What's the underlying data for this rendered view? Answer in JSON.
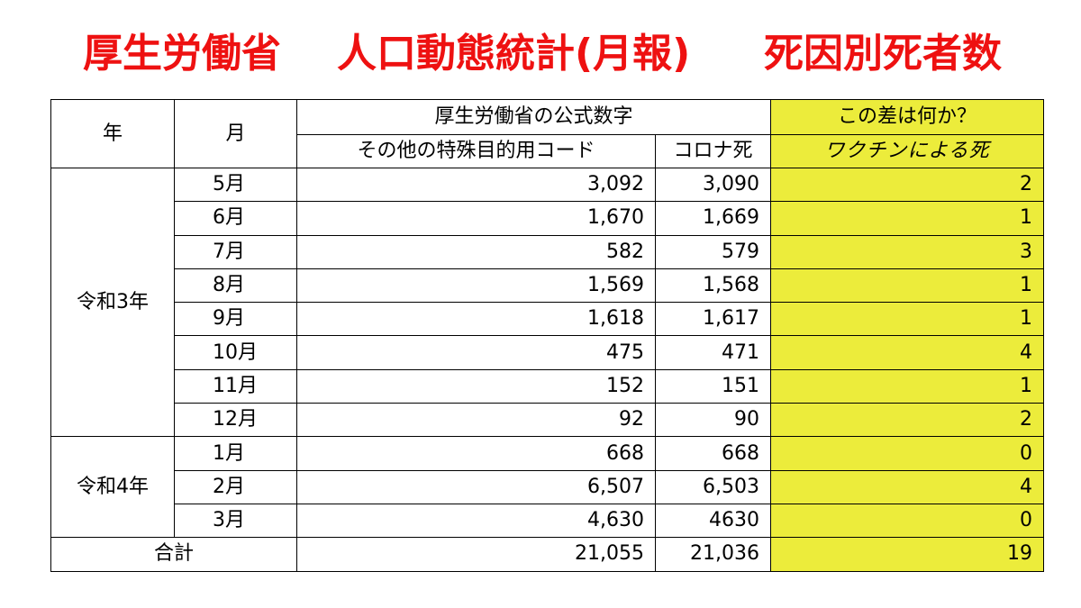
{
  "title": {
    "part1": "厚生労働省",
    "part2": "人口動態統計(月報)",
    "part3": "死因別死者数"
  },
  "table": {
    "header": {
      "year": "年",
      "month": "月",
      "official": "厚生労働省の公式数字",
      "question": "この差は何か？",
      "col_special": "その他の特殊目的用コード",
      "col_corona": "コロナ死",
      "col_vaccine": "ワクチンによる死"
    },
    "years": [
      "令和3年",
      "令和4年"
    ],
    "rows": [
      {
        "month": "5月",
        "special": "3,092",
        "corona": "3,090",
        "diff": "2"
      },
      {
        "month": "6月",
        "special": "1,670",
        "corona": "1,669",
        "diff": "1"
      },
      {
        "month": "7月",
        "special": "582",
        "corona": "579",
        "diff": "3"
      },
      {
        "month": "8月",
        "special": "1,569",
        "corona": "1,568",
        "diff": "1"
      },
      {
        "month": "9月",
        "special": "1,618",
        "corona": "1,617",
        "diff": "1"
      },
      {
        "month": "10月",
        "special": "475",
        "corona": "471",
        "diff": "4"
      },
      {
        "month": "11月",
        "special": "152",
        "corona": "151",
        "diff": "1"
      },
      {
        "month": "12月",
        "special": "92",
        "corona": "90",
        "diff": "2"
      },
      {
        "month": "1月",
        "special": "668",
        "corona": "668",
        "diff": "0"
      },
      {
        "month": "2月",
        "special": "6,507",
        "corona": "6,503",
        "diff": "4"
      },
      {
        "month": "3月",
        "special": "4,630",
        "corona": "4630",
        "diff": "0"
      }
    ],
    "total": {
      "label": "合計",
      "special": "21,055",
      "corona": "21,036",
      "diff": "19"
    }
  },
  "colors": {
    "title": "#ee1111",
    "highlight": "#ecec3b"
  }
}
